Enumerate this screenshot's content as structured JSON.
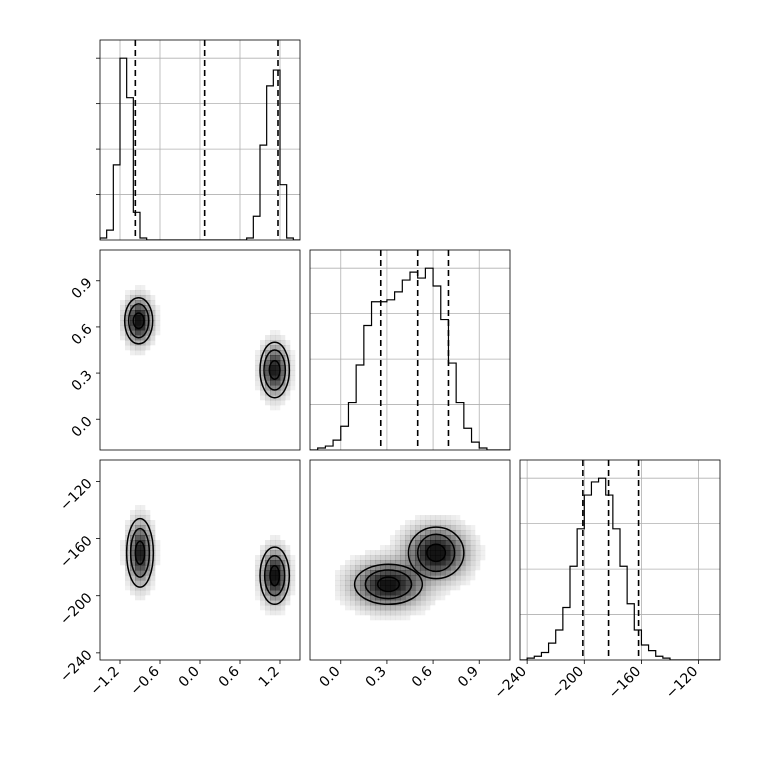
{
  "chart_data": {
    "type": "corner",
    "grid": true,
    "parameters": [
      {
        "range": [
          -1.5,
          1.5
        ],
        "ticks": [
          -1.2,
          -0.6,
          0.0,
          0.6,
          1.2
        ],
        "tick_labels": [
          "−1.2",
          "−0.6",
          "0.0",
          "0.6",
          "1.2"
        ],
        "quantiles": [
          -0.97,
          0.07,
          1.17
        ],
        "hist_edges": [
          -1.5,
          -1.4,
          -1.3,
          -1.2,
          -1.1,
          -1.0,
          -0.9,
          -0.8,
          -0.7,
          -0.6,
          -0.5,
          -0.4,
          -0.3,
          -0.2,
          -0.1,
          0.0,
          0.1,
          0.2,
          0.3,
          0.4,
          0.5,
          0.6,
          0.7,
          0.8,
          0.9,
          1.0,
          1.1,
          1.2,
          1.3,
          1.4,
          1.5
        ],
        "hist_counts": [
          0.01,
          0.05,
          0.38,
          0.92,
          0.72,
          0.14,
          0.01,
          0,
          0,
          0,
          0,
          0,
          0,
          0,
          0,
          0,
          0,
          0,
          0,
          0,
          0,
          0,
          0.01,
          0.12,
          0.48,
          0.78,
          0.86,
          0.28,
          0.01,
          0
        ]
      },
      {
        "range": [
          -0.2,
          1.1
        ],
        "ticks": [
          0.0,
          0.3,
          0.6,
          0.9
        ],
        "tick_labels": [
          "0.0",
          "0.3",
          "0.6",
          "0.9"
        ],
        "quantiles": [
          0.26,
          0.5,
          0.7
        ],
        "hist_edges": [
          -0.2,
          -0.15,
          -0.1,
          -0.05,
          0.0,
          0.05,
          0.1,
          0.15,
          0.2,
          0.25,
          0.3,
          0.35,
          0.4,
          0.45,
          0.5,
          0.55,
          0.6,
          0.65,
          0.7,
          0.75,
          0.8,
          0.85,
          0.9,
          0.95,
          1.0,
          1.05,
          1.1
        ],
        "hist_counts": [
          0,
          0.01,
          0.02,
          0.05,
          0.12,
          0.24,
          0.43,
          0.63,
          0.75,
          0.75,
          0.76,
          0.8,
          0.86,
          0.9,
          0.87,
          0.92,
          0.83,
          0.66,
          0.44,
          0.24,
          0.11,
          0.04,
          0.01,
          0,
          0,
          0
        ]
      },
      {
        "range": [
          -245,
          -105
        ],
        "ticks": [
          -240,
          -200,
          -160,
          -120
        ],
        "tick_labels": [
          "−240",
          "−200",
          "−160",
          "−120"
        ],
        "quantiles": [
          -201,
          -183,
          -162
        ],
        "hist_edges": [
          -245,
          -240,
          -235,
          -230,
          -225,
          -220,
          -215,
          -210,
          -205,
          -200,
          -195,
          -190,
          -185,
          -180,
          -175,
          -170,
          -165,
          -160,
          -155,
          -150,
          -145,
          -140,
          -135,
          -130,
          -125,
          -120,
          -115,
          -110,
          -105
        ],
        "hist_counts": [
          0,
          0.01,
          0.02,
          0.04,
          0.09,
          0.16,
          0.28,
          0.5,
          0.7,
          0.88,
          0.95,
          0.97,
          0.88,
          0.7,
          0.5,
          0.3,
          0.16,
          0.08,
          0.05,
          0.02,
          0.01,
          0,
          0,
          0,
          0,
          0,
          0,
          0
        ]
      }
    ],
    "joint": [
      {
        "pair": [
          0,
          1
        ],
        "blobs": [
          {
            "center": [
              -0.92,
              0.64
            ],
            "sd": [
              0.11,
              0.08
            ],
            "peak": 1.0
          },
          {
            "center": [
              1.12,
              0.32
            ],
            "sd": [
              0.11,
              0.09
            ],
            "peak": 0.9
          }
        ],
        "contours": [
          {
            "center": [
              -0.92,
              0.64
            ],
            "rx": [
              0.21,
              0.15,
              0.08
            ],
            "ry": [
              0.15,
              0.11,
              0.05
            ]
          },
          {
            "center": [
              1.12,
              0.32
            ],
            "rx": [
              0.22,
              0.16,
              0.08
            ],
            "ry": [
              0.18,
              0.13,
              0.06
            ]
          }
        ]
      },
      {
        "pair": [
          0,
          2
        ],
        "blobs": [
          {
            "center": [
              -0.9,
              -170
            ],
            "sd": [
              0.1,
              12
            ],
            "peak": 0.9
          },
          {
            "center": [
              1.12,
              -186
            ],
            "sd": [
              0.11,
              10
            ],
            "peak": 1.0
          }
        ],
        "contours": [
          {
            "center": [
              -0.9,
              -170
            ],
            "rx": [
              0.2,
              0.14,
              0.07
            ],
            "ry": [
              24,
              17,
              8
            ]
          },
          {
            "center": [
              1.12,
              -186
            ],
            "rx": [
              0.22,
              0.15,
              0.07
            ],
            "ry": [
              20,
              14,
              7
            ]
          }
        ]
      },
      {
        "pair": [
          1,
          2
        ],
        "blobs": [
          {
            "center": [
              0.31,
              -192
            ],
            "sd": [
              0.13,
              9
            ],
            "peak": 0.95
          },
          {
            "center": [
              0.62,
              -170
            ],
            "sd": [
              0.11,
              10
            ],
            "peak": 1.0
          }
        ],
        "contours": [
          {
            "center": [
              0.31,
              -192
            ],
            "rx": [
              0.22,
              0.15,
              0.07
            ],
            "ry": [
              14,
              10,
              5
            ]
          },
          {
            "center": [
              0.62,
              -170
            ],
            "rx": [
              0.18,
              0.12,
              0.06
            ],
            "ry": [
              18,
              13,
              6
            ]
          }
        ]
      }
    ]
  }
}
